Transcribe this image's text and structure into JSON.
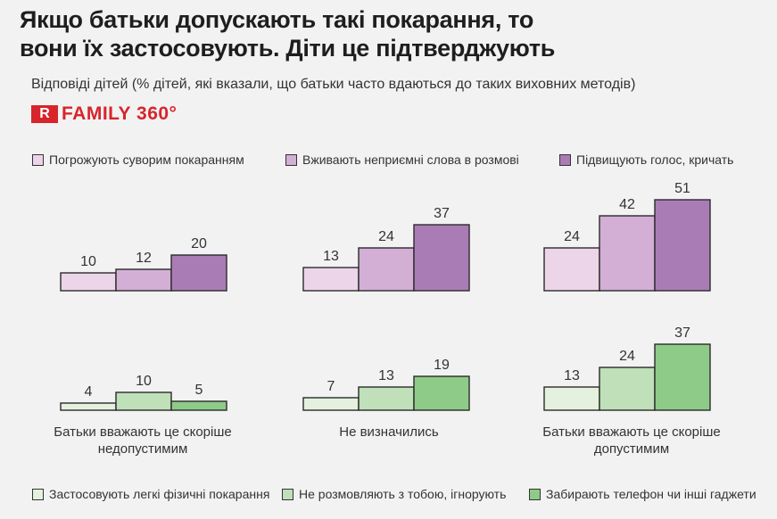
{
  "title_line1": "Якщо батьки допускають такі покарання, то",
  "title_line2": "вони їх застосовують. Діти це підтверджують",
  "subtitle": "Відповіді дітей (% дітей, які вказали, що батьки часто вдаються до таких виховних методів)",
  "logo": {
    "mark": "R",
    "text": "FAMILY 360°"
  },
  "chart_data": {
    "type": "bar",
    "title": "Якщо батьки допускають такі покарання, то вони їх застосовують. Діти це підтверджують",
    "subtitle": "Відповіді дітей (% дітей, які вказали, що батьки часто вдаються до таких виховних методів)",
    "categories": [
      "Батьки вважають це скоріше недопустимим",
      "Не визначились",
      "Батьки вважають це скоріше допустимим"
    ],
    "panels": [
      {
        "name": "top",
        "series": [
          {
            "name": "Погрожують суворим покаранням",
            "color": "#ecd5e8",
            "values": [
              10,
              13,
              24
            ]
          },
          {
            "name": "Вживають неприємні слова в розмові",
            "color": "#d3afd5",
            "values": [
              12,
              24,
              42
            ]
          },
          {
            "name": "Підвищують голос, кричать",
            "color": "#aa7cb6",
            "values": [
              20,
              37,
              51
            ]
          }
        ]
      },
      {
        "name": "bottom",
        "series": [
          {
            "name": "Застосовують легкі фізичні покарання",
            "color": "#e4f1de",
            "values": [
              4,
              7,
              13
            ]
          },
          {
            "name": "Не розмовляють з тобою, ігнорують",
            "color": "#bfe0b8",
            "values": [
              10,
              13,
              24
            ]
          },
          {
            "name": "Забирають телефон чи інші гаджети",
            "color": "#8fcb88",
            "values": [
              5,
              19,
              37
            ]
          }
        ]
      }
    ],
    "category_labels": [
      [
        "Батьки вважають це скоріше",
        "недопустимим"
      ],
      [
        "Не визначились"
      ],
      [
        "Батьки вважають це скоріше",
        "допустимим"
      ]
    ],
    "unit": "%"
  }
}
